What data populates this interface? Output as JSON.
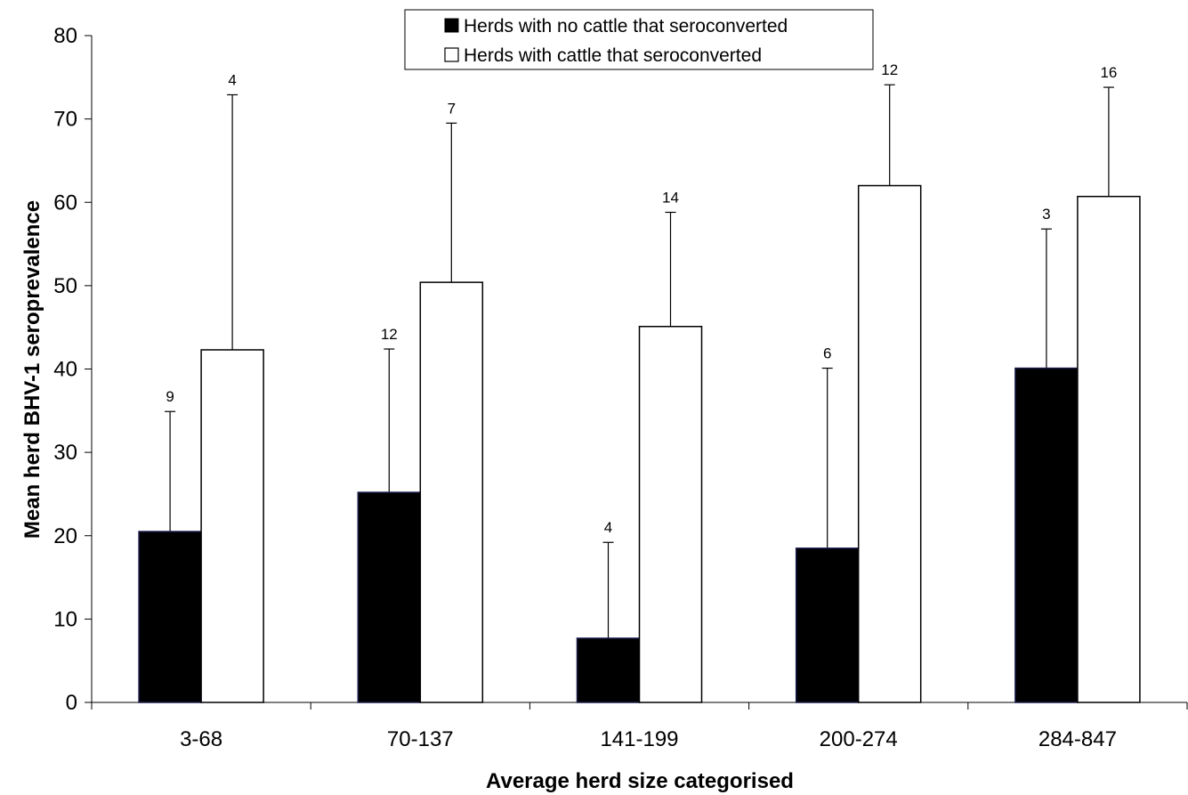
{
  "chart_data": {
    "type": "bar",
    "title": "",
    "xlabel": "Average herd size categorised",
    "ylabel": "Mean herd BHV-1 seroprevalence",
    "ylim": [
      0,
      80
    ],
    "yticks": [
      0,
      10,
      20,
      30,
      40,
      50,
      60,
      70,
      80
    ],
    "categories": [
      "3-68",
      "70-137",
      "141-199",
      "200-274",
      "284-847"
    ],
    "series": [
      {
        "name": "Herds with no cattle that seroconverted",
        "fill": "#000000",
        "values": [
          20.5,
          25.2,
          7.7,
          18.5,
          40.1
        ],
        "error_upper": [
          34.9,
          42.4,
          19.2,
          40.1,
          56.8
        ],
        "n": [
          "9",
          "12",
          "4",
          "6",
          "3"
        ]
      },
      {
        "name": "Herds with cattle that seroconverted",
        "fill": "#ffffff",
        "values": [
          42.3,
          50.4,
          45.1,
          62.0,
          60.7
        ],
        "error_upper": [
          72.9,
          69.5,
          58.8,
          74.1,
          73.8
        ],
        "n": [
          "4",
          "7",
          "14",
          "12",
          "16"
        ]
      }
    ],
    "legend_position": "top-center",
    "grid": false
  }
}
